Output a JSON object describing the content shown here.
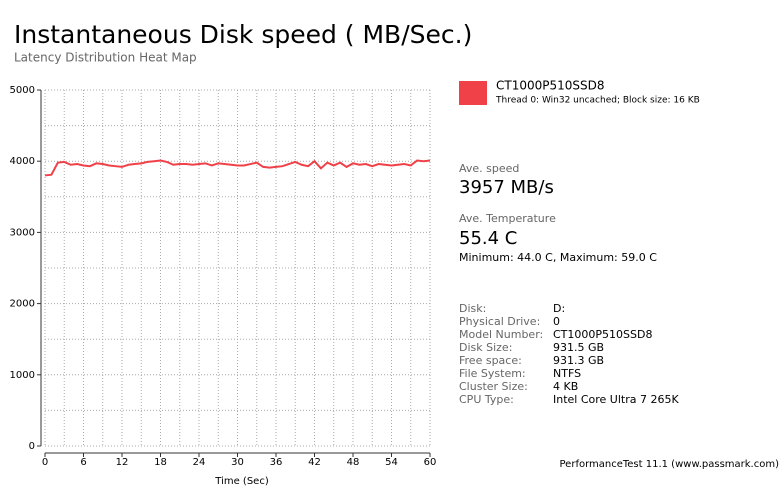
{
  "chart_data": {
    "type": "line",
    "title": "Instantaneous Disk speed ( MB/Sec.)",
    "subtitle": "Latency Distribution Heat Map",
    "x_label": "Time (Sec)",
    "x": [
      0,
      1,
      2,
      3,
      4,
      5,
      6,
      7,
      8,
      9,
      10,
      11,
      12,
      13,
      14,
      15,
      16,
      17,
      18,
      19,
      20,
      21,
      22,
      23,
      24,
      25,
      26,
      27,
      28,
      29,
      30,
      31,
      32,
      33,
      34,
      35,
      36,
      37,
      38,
      39,
      40,
      41,
      42,
      43,
      44,
      45,
      46,
      47,
      48,
      49,
      50,
      51,
      52,
      53,
      54,
      55,
      56,
      57,
      58,
      59,
      60
    ],
    "series": [
      {
        "name": "CT1000P510SSD8",
        "color": "#f04048",
        "values": [
          3800,
          3810,
          3980,
          3990,
          3950,
          3960,
          3940,
          3930,
          3970,
          3960,
          3940,
          3930,
          3920,
          3950,
          3960,
          3970,
          3990,
          4000,
          4010,
          3990,
          3950,
          3960,
          3960,
          3950,
          3960,
          3970,
          3940,
          3970,
          3960,
          3950,
          3940,
          3940,
          3960,
          3980,
          3920,
          3910,
          3920,
          3930,
          3960,
          3990,
          3950,
          3930,
          4000,
          3900,
          3980,
          3940,
          3980,
          3920,
          3970,
          3950,
          3960,
          3930,
          3960,
          3950,
          3940,
          3950,
          3960,
          3940,
          4010,
          4000,
          4010
        ]
      }
    ],
    "legend_note": "Thread 0: Win32 uncached; Block size: 16 KB",
    "xlim": [
      0,
      60
    ],
    "xticks": [
      0,
      6,
      12,
      18,
      24,
      30,
      36,
      42,
      48,
      54,
      60
    ],
    "xgrid": [
      0,
      3,
      6,
      9,
      12,
      15,
      18,
      21,
      24,
      27,
      30,
      33,
      36,
      39,
      42,
      45,
      48,
      51,
      54,
      57,
      60
    ],
    "ylim": [
      0,
      5000
    ],
    "yticks": [
      0,
      1000,
      2000,
      3000,
      4000,
      5000
    ],
    "ygrid": [
      0,
      500,
      1000,
      1500,
      2000,
      2500,
      3000,
      3500,
      4000,
      4500,
      5000
    ],
    "grid": true
  },
  "panel": {
    "speed_label": "Ave. speed",
    "speed_value": "3957 MB/s",
    "temp_label": "Ave. Temperature",
    "temp_value": "55.4 C",
    "temp_range": "Minimum: 44.0 C, Maximum: 59.0 C",
    "details": [
      {
        "label": "Disk:",
        "value": "D:"
      },
      {
        "label": "Physical Drive:",
        "value": "0"
      },
      {
        "label": "Model Number:",
        "value": "CT1000P510SSD8"
      },
      {
        "label": "Disk Size:",
        "value": "931.5 GB"
      },
      {
        "label": "Free space:",
        "value": "931.3 GB"
      },
      {
        "label": "File System:",
        "value": "NTFS"
      },
      {
        "label": "Cluster Size:",
        "value": "4 KB"
      },
      {
        "label": "CPU Type:",
        "value": "Intel Core Ultra 7 265K"
      }
    ],
    "footer": "PerformanceTest 11.1 (www.passmark.com)"
  }
}
